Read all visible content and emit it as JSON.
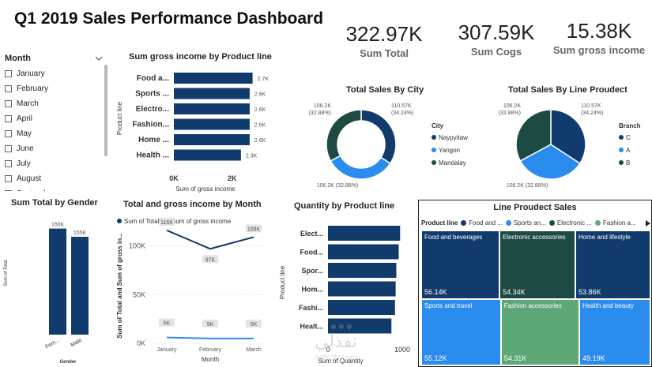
{
  "page": {
    "title": "Q1 2019 Sales Performance Dashboard"
  },
  "kpis": [
    {
      "value": "322.97K",
      "label": "Sum Total"
    },
    {
      "value": "307.59K",
      "label": "Sum Cogs"
    },
    {
      "value": "15.38K",
      "label": "Sum gross income"
    }
  ],
  "slicer": {
    "title": "Month",
    "items": [
      "January",
      "February",
      "March",
      "April",
      "May",
      "June",
      "July",
      "August",
      "September"
    ]
  },
  "watermark": {
    "line1": "نفذلي",
    "line2": "nafezly.com"
  },
  "chart_data": [
    {
      "id": "gross-income-by-product",
      "type": "bar",
      "orientation": "horizontal",
      "title": "Sum gross income by Product line",
      "xlabel": "Sum of gross income",
      "ylabel": "Product line",
      "categories": [
        "Food a...",
        "Sports ...",
        "Electro...",
        "Fashion...",
        "Home ...",
        "Health ..."
      ],
      "values": [
        2700,
        2600,
        2600,
        2600,
        2600,
        2300
      ],
      "data_labels": [
        "2.7K",
        "2.6K",
        "2.6K",
        "2.6K",
        "2.6K",
        "2.3K"
      ],
      "xticks": [
        "0K",
        "2K"
      ],
      "xlim": [
        0,
        2900
      ],
      "color": "#123b6d"
    },
    {
      "id": "total-sales-by-city",
      "type": "pie",
      "donut": true,
      "title": "Total Sales By City",
      "legend_title": "City",
      "labels": [
        "Naypyitaw",
        "Yangon",
        "Mandalay"
      ],
      "values": [
        110.57,
        106.2,
        106.2
      ],
      "slice_labels": [
        "110.57K\n(34.24%)",
        "106.2K (32.88%)",
        "106.2K\n(32.88%)"
      ],
      "colors": [
        "#123b6d",
        "#2b8cf0",
        "#1d4a43"
      ],
      "legend": "right"
    },
    {
      "id": "total-sales-by-branch",
      "type": "pie",
      "donut": false,
      "title": "Total Sales By Line Proudect",
      "legend_title": "Branch",
      "labels": [
        "C",
        "A",
        "B"
      ],
      "values": [
        110.57,
        106.2,
        106.2
      ],
      "slice_labels": [
        "110.57K\n(34.24%)",
        "106.2K (32.88%)",
        "106.2K\n(32.88%)"
      ],
      "colors": [
        "#123b6d",
        "#2b8cf0",
        "#1d4a43"
      ],
      "legend": "right"
    },
    {
      "id": "sum-total-by-gender",
      "type": "bar",
      "title": "Sum Total by Gender",
      "xlabel": "Gender",
      "ylabel": "Sum of Total",
      "categories": [
        "Fem...",
        "Male"
      ],
      "values": [
        168,
        155
      ],
      "data_labels": [
        "168K",
        "155K"
      ],
      "ylim": [
        0,
        175
      ],
      "color": "#123b6d"
    },
    {
      "id": "total-gross-by-month",
      "type": "line",
      "title": "Total and gross income by Month",
      "xlabel": "Month",
      "ylabel": "Sum of Total and Sum of gross in...",
      "categories": [
        "January",
        "February",
        "March"
      ],
      "series": [
        {
          "name": "Sum of Total",
          "values": [
            116,
            97,
            109
          ],
          "labels": [
            "116K",
            "97K",
            "109K"
          ],
          "color": "#123b6d"
        },
        {
          "name": "Sum of gross income",
          "values": [
            6,
            5,
            5
          ],
          "labels": [
            "6K",
            "5K",
            "5K"
          ],
          "color": "#2b8cf0"
        }
      ],
      "yticks": [
        "0K",
        "50K",
        "100K"
      ],
      "ylim": [
        0,
        128
      ],
      "legend": "top"
    },
    {
      "id": "quantity-by-product",
      "type": "bar",
      "orientation": "horizontal",
      "title": "Quantity by Product line",
      "xlabel": "Sum of Quantity",
      "ylabel": "Product line",
      "categories": [
        "Elect...",
        "Food...",
        "Spor...",
        "Hom...",
        "Fashi...",
        "Healt..."
      ],
      "values": [
        971,
        952,
        920,
        911,
        902,
        854
      ],
      "xticks": [
        "0",
        "1000"
      ],
      "xlim": [
        0,
        1000
      ],
      "color": "#123b6d"
    },
    {
      "id": "line-product-sales",
      "type": "treemap",
      "title": "Line Proudect Sales",
      "legend_title": "Product line",
      "legend_entries": [
        "Food and ...",
        "Sports an...",
        "Electronic ...",
        "Fashion a..."
      ],
      "items": [
        {
          "name": "Food and beverages",
          "value": 56.14,
          "label": "56.14K",
          "color": "#123b6d"
        },
        {
          "name": "Electronic accessories",
          "value": 54.34,
          "label": "54.34K",
          "color": "#1d4a43"
        },
        {
          "name": "Home and lifestyle",
          "value": 53.86,
          "label": "53.86K",
          "color": "#123b6d"
        },
        {
          "name": "Sports and travel",
          "value": 55.12,
          "label": "55.12K",
          "color": "#2b8cf0"
        },
        {
          "name": "Fashion accessories",
          "value": 54.31,
          "label": "54.31K",
          "color": "#5ea878"
        },
        {
          "name": "Health and beauty",
          "value": 49.19,
          "label": "49.19K",
          "color": "#2b8cf0"
        }
      ]
    }
  ]
}
